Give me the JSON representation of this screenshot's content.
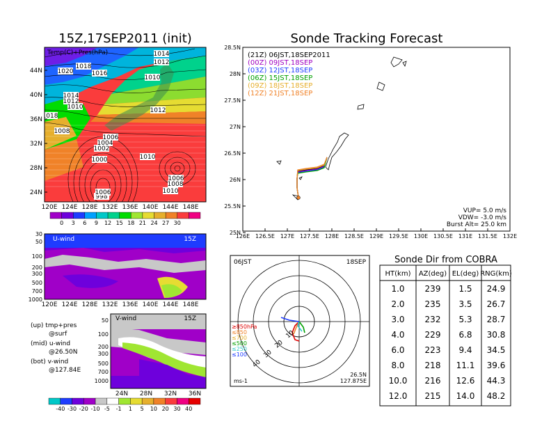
{
  "main_map": {
    "title": "15Z,17SEP2011 (init)",
    "label": "Temp(C)+Pres(hPa)",
    "lat_ticks": [
      "44N",
      "40N",
      "36N",
      "32N",
      "28N",
      "24N"
    ],
    "lon_ticks": [
      "120E",
      "124E",
      "128E",
      "132E",
      "136E",
      "140E",
      "144E",
      "148E"
    ],
    "isobar_labels": [
      "1014",
      "1012",
      "1020",
      "1018",
      "1016",
      "1010",
      "1014",
      "1012",
      "1010",
      "1018",
      "1012",
      "1008",
      "1006",
      "1004",
      "1002",
      "1000",
      "1010",
      "1006",
      "1008",
      "1010",
      "998",
      "1006"
    ],
    "colorbar_ticks": [
      "0",
      "3",
      "6",
      "9",
      "12",
      "15",
      "18",
      "21",
      "24",
      "27",
      "30"
    ]
  },
  "uwind": {
    "title": "U-wind",
    "time": "15Z",
    "p_ticks": [
      "30",
      "50",
      "100",
      "200",
      "300",
      "500",
      "700",
      "1000"
    ],
    "lon_ticks": [
      "120E",
      "124E",
      "128E",
      "132E",
      "136E",
      "140E",
      "144E",
      "148E"
    ]
  },
  "vwind": {
    "title": "V-wind",
    "time": "15Z",
    "p_ticks": [
      "50",
      "100",
      "200",
      "300",
      "500",
      "700",
      "1000"
    ],
    "lat_ticks": [
      "24N",
      "28N",
      "32N",
      "36N"
    ],
    "colorbar_ticks": [
      "-40",
      "-30",
      "-20",
      "-10",
      "-5",
      "-1",
      "1",
      "5",
      "10",
      "20",
      "30",
      "40"
    ]
  },
  "legend_notes": [
    {
      "a": "(up) tmp+pres",
      "b": "@surf"
    },
    {
      "a": "(mid) u-wind",
      "b": "@26.50N"
    },
    {
      "a": "(bot) v-wind",
      "b": "@127.84E"
    }
  ],
  "tracking": {
    "title": "Sonde Tracking Forecast",
    "lat_ticks": [
      "28.5N",
      "28N",
      "27.5N",
      "27N",
      "26.5N",
      "26N",
      "25.5N",
      "25N"
    ],
    "lon_ticks": [
      "126E",
      "126.5E",
      "127E",
      "127.5E",
      "128E",
      "128.5E",
      "129E",
      "129.5E",
      "130E",
      "130.5E",
      "131E",
      "131.5E",
      "132E"
    ],
    "legend": [
      {
        "text": "(21Z) 06JST,18SEP2011",
        "color": "#000000"
      },
      {
        "text": "(00Z) 09JST,18SEP",
        "color": "#a000c0"
      },
      {
        "text": "(03Z) 12JST,18SEP",
        "color": "#1e3cff"
      },
      {
        "text": "(06Z) 15JST,18SEP",
        "color": "#00a000"
      },
      {
        "text": "(09Z) 18JST,18SEP",
        "color": "#e6af2d"
      },
      {
        "text": "(12Z) 21JST,18SEP",
        "color": "#f08228"
      }
    ],
    "params": [
      "VUP= 5.0 m/s",
      "VDW= -3.0 m/s",
      "Burst Alt= 25.0 km"
    ]
  },
  "polar": {
    "time": "06JST",
    "date": "18SEP",
    "rings": [
      "10",
      "20",
      "30",
      "40"
    ],
    "levels": [
      {
        "text": "≥850hPa",
        "color": "#e00000"
      },
      {
        "text": "≤850",
        "color": "#f08228"
      },
      {
        "text": "≤700",
        "color": "#e6af2d"
      },
      {
        "text": "≤500",
        "color": "#00a000"
      },
      {
        "text": "≤250",
        "color": "#30c8c8"
      },
      {
        "text": "≤100",
        "color": "#1e3cff"
      }
    ],
    "unit": "ms-1",
    "lat": "26.5N",
    "lon": "127.875E"
  },
  "sonde_table": {
    "title": "Sonde Dir from COBRA",
    "headers": [
      "HT(km)",
      "AZ(deg)",
      "EL(deg)",
      "RNG(km)"
    ],
    "rows": [
      [
        "1.0",
        "239",
        "1.5",
        "24.9"
      ],
      [
        "2.0",
        "235",
        "3.5",
        "26.7"
      ],
      [
        "3.0",
        "232",
        "5.3",
        "28.7"
      ],
      [
        "4.0",
        "229",
        "6.8",
        "30.8"
      ],
      [
        "6.0",
        "223",
        "9.4",
        "34.5"
      ],
      [
        "8.0",
        "218",
        "11.1",
        "39.6"
      ],
      [
        "10.0",
        "216",
        "12.6",
        "44.3"
      ],
      [
        "12.0",
        "215",
        "14.0",
        "48.2"
      ]
    ]
  },
  "chart_data": {
    "type": "table",
    "title": "Sonde Dir from COBRA",
    "columns": [
      "HT(km)",
      "AZ(deg)",
      "EL(deg)",
      "RNG(km)"
    ],
    "rows": [
      [
        1.0,
        239,
        1.5,
        24.9
      ],
      [
        2.0,
        235,
        3.5,
        26.7
      ],
      [
        3.0,
        232,
        5.3,
        28.7
      ],
      [
        4.0,
        229,
        6.8,
        30.8
      ],
      [
        6.0,
        223,
        9.4,
        34.5
      ],
      [
        8.0,
        218,
        11.1,
        39.6
      ],
      [
        10.0,
        216,
        12.6,
        44.3
      ],
      [
        12.0,
        215,
        14.0,
        48.2
      ]
    ]
  },
  "colors": {
    "colorbar_temp": [
      "#a000c8",
      "#6e00dc",
      "#1e3cff",
      "#00a0ff",
      "#00c8c8",
      "#00d28c",
      "#00dc00",
      "#a0e632",
      "#e6dc32",
      "#e6af2d",
      "#f08228",
      "#fa3c3c",
      "#f00082"
    ],
    "colorbar_wind": [
      "#00c8c8",
      "#1e3cff",
      "#6e00dc",
      "#a000c8",
      "#c8c8c8",
      "#ffffff",
      "#a0e632",
      "#e6dc32",
      "#e6af2d",
      "#f08228",
      "#fa3c3c",
      "#f00082",
      "#e60000"
    ]
  }
}
